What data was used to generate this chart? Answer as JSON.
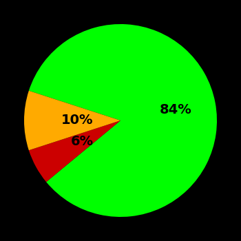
{
  "slices": [
    84,
    6,
    10
  ],
  "colors": [
    "#00ff00",
    "#cc0000",
    "#ffaa00"
  ],
  "labels": [
    "84%",
    "6%",
    "10%"
  ],
  "background_color": "#000000",
  "text_color": "#000000",
  "startangle": 162,
  "counterclock": false,
  "figsize": [
    3.5,
    3.5
  ],
  "dpi": 100,
  "label_radii": [
    0.58,
    0.45,
    0.45
  ],
  "fontsize": 14
}
